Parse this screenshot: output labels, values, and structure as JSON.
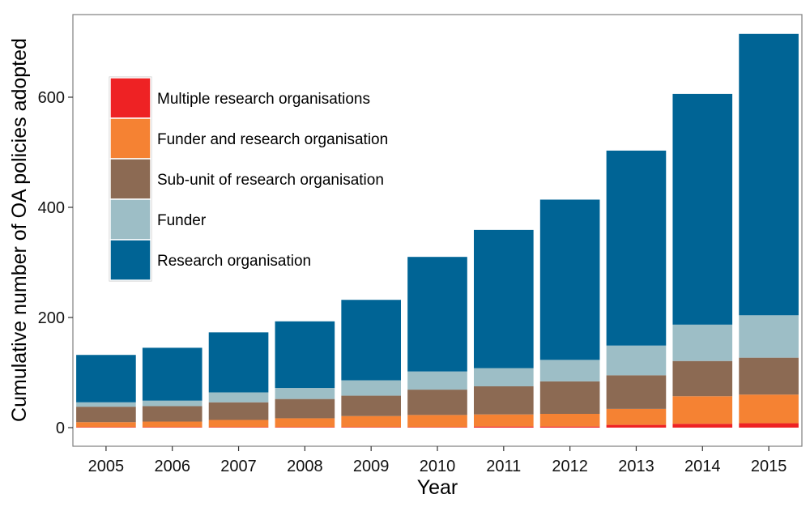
{
  "chart_data": {
    "type": "bar",
    "stacked": true,
    "xlabel": "Year",
    "ylabel": "Cumulative number of OA policies adopted",
    "ylim": [
      0,
      730
    ],
    "yticks": [
      0,
      200,
      400,
      600
    ],
    "grid": false,
    "legend_position": "top-left",
    "categories": [
      "2005",
      "2006",
      "2007",
      "2008",
      "2009",
      "2010",
      "2011",
      "2012",
      "2013",
      "2014",
      "2015"
    ],
    "series": [
      {
        "name": "Multiple research organisations",
        "color": "#EE2224",
        "values": [
          1,
          1,
          1,
          1,
          1,
          1,
          2,
          2,
          5,
          7,
          8
        ]
      },
      {
        "name": "Funder and research organisation",
        "color": "#F58233",
        "values": [
          9,
          10,
          13,
          16,
          20,
          22,
          22,
          23,
          29,
          50,
          52
        ]
      },
      {
        "name": "Sub-unit of research organisation",
        "color": "#8C6A53",
        "values": [
          28,
          28,
          32,
          35,
          37,
          46,
          51,
          59,
          61,
          64,
          67
        ]
      },
      {
        "name": "Funder",
        "color": "#9DBEC6",
        "values": [
          8,
          10,
          18,
          20,
          28,
          33,
          33,
          39,
          54,
          66,
          77
        ]
      },
      {
        "name": "Research organisation",
        "color": "#006495",
        "values": [
          86,
          96,
          109,
          121,
          146,
          208,
          251,
          291,
          354,
          419,
          511
        ]
      }
    ],
    "legend_order": [
      0,
      1,
      2,
      3,
      4
    ]
  }
}
